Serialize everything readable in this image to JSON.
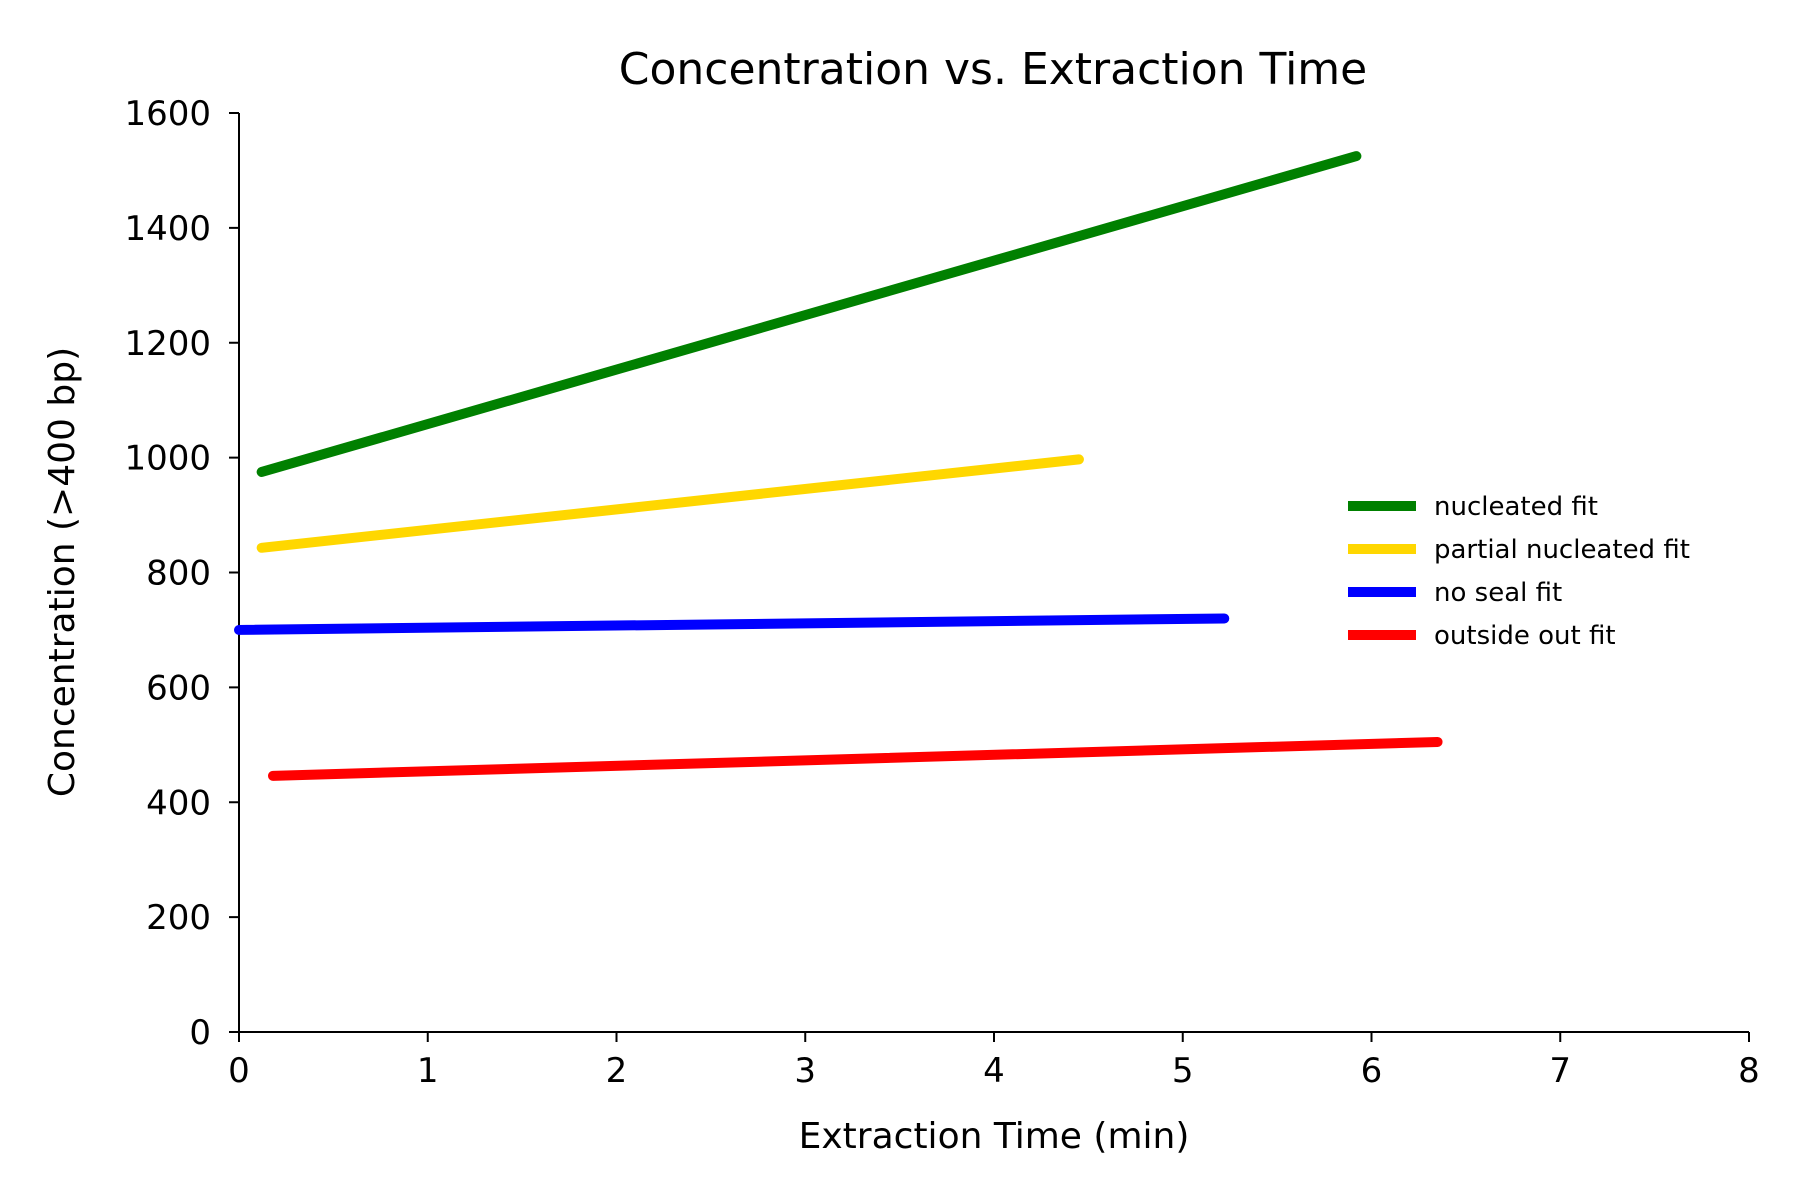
{
  "chart_data": {
    "type": "line",
    "title": "Concentration vs. Extraction Time",
    "xlabel": "Extraction Time (min)",
    "ylabel": "Concentration (>400 bp)",
    "xlim": [
      0,
      8
    ],
    "ylim": [
      0,
      1600
    ],
    "xticks": [
      "0",
      "1",
      "2",
      "3",
      "4",
      "5",
      "6",
      "7",
      "8"
    ],
    "yticks": [
      "0",
      "200",
      "400",
      "600",
      "800",
      "1000",
      "1200",
      "1400",
      "1600"
    ],
    "xtick_values": [
      0,
      1,
      2,
      3,
      4,
      5,
      6,
      7,
      8
    ],
    "ytick_values": [
      0,
      200,
      400,
      600,
      800,
      1000,
      1200,
      1400,
      1600
    ],
    "grid": false,
    "legend_position": "right",
    "series": [
      {
        "name": "nucleated fit",
        "color": "#008000",
        "x": [
          0.12,
          5.92
        ],
        "y": [
          975,
          1525
        ]
      },
      {
        "name": "partial nucleated fit",
        "color": "#FFD700",
        "x": [
          0.12,
          4.45
        ],
        "y": [
          843,
          997
        ]
      },
      {
        "name": "no seal fit",
        "color": "#0000FF",
        "x": [
          0.0,
          5.22
        ],
        "y": [
          700,
          720
        ]
      },
      {
        "name": "outside out fit",
        "color": "#FF0000",
        "x": [
          0.18,
          6.35
        ],
        "y": [
          446,
          505
        ]
      }
    ]
  }
}
